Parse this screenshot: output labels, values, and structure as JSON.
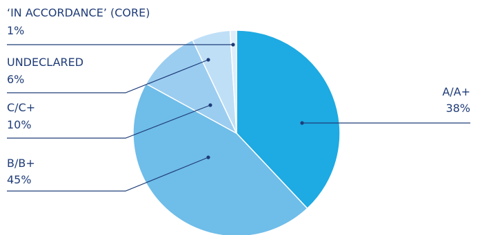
{
  "chart_data": {
    "type": "pie",
    "title": "",
    "slices": [
      {
        "name": "A/A+",
        "value": 38,
        "value_label": "38%",
        "color": "#1eaae2"
      },
      {
        "name": "B/B+",
        "value": 45,
        "value_label": "45%",
        "color": "#6fbde9"
      },
      {
        "name": "C/C+",
        "value": 10,
        "value_label": "10%",
        "color": "#9bcdf0"
      },
      {
        "name": "UNDECLARED",
        "value": 6,
        "value_label": "6%",
        "color": "#bfdff7"
      },
      {
        "name": "‘IN ACCORDANCE’ (CORE)",
        "value": 1,
        "value_label": "1%",
        "color": "#deeefb"
      }
    ],
    "start_angle_deg": 0,
    "direction": "clockwise",
    "leader_color": "#1f3c78",
    "label_color": "#1f3c78"
  }
}
